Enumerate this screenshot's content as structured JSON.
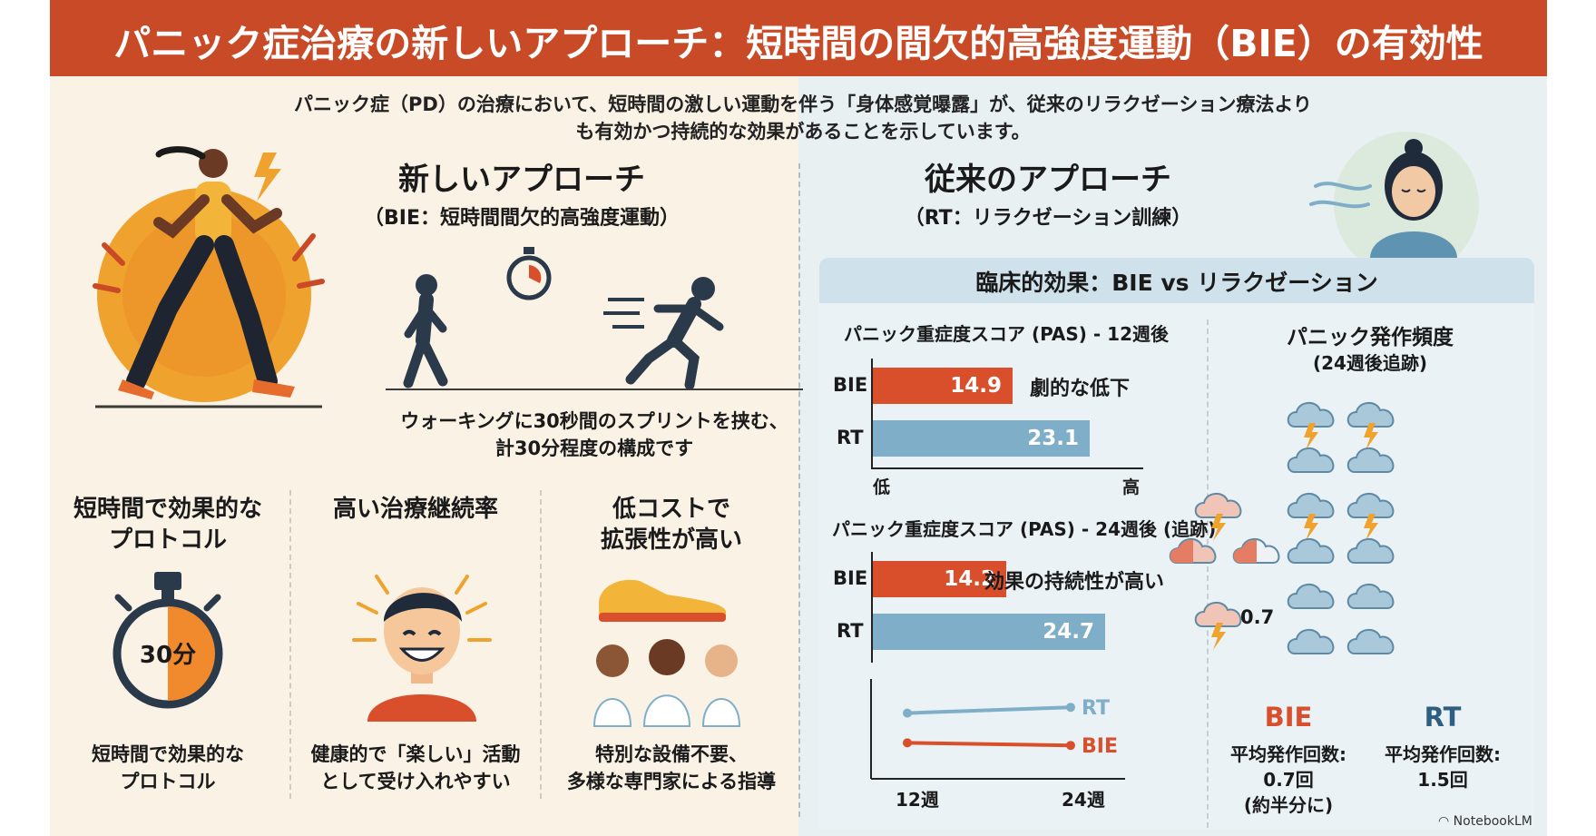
{
  "title": "パニック症治療の新しいアプローチ：短時間の間欠的高強度運動（BIE）の有効性",
  "intro": {
    "line1": "パニック症（PD）の治療において、短時間の激しい運動を伴う「身体感覚曝露」が、従来のリラクゼーション療法より",
    "line2": "も有効かつ持続的な効果があることを示しています。"
  },
  "new_approach": {
    "heading": "新しいアプローチ",
    "subheading": "（BIE：短時間間欠的高強度運動）",
    "description_line1": "ウォーキングに30秒間のスプリントを挟む、",
    "description_line2": "計30分程度の構成です"
  },
  "features": [
    {
      "title_line1": "短時間で効果的な",
      "title_line2": "プロトコル",
      "caption_line1": "短時間で効果的な",
      "caption_line2": "プロトコル",
      "icon_text": "30分"
    },
    {
      "title_line1": "高い治療継続率",
      "title_line2": "",
      "caption_line1": "健康的で「楽しい」活動",
      "caption_line2": "として受け入れやすい"
    },
    {
      "title_line1": "低コストで",
      "title_line2": "拡張性が高い",
      "caption_line1": "特別な設備不要、",
      "caption_line2": "多様な専門家による指導"
    }
  ],
  "traditional": {
    "heading": "従来のアプローチ",
    "subheading": "（RT：リラクゼーション訓練）"
  },
  "panel_title": "臨床的効果：BIE vs リラクゼーション",
  "chart_data": [
    {
      "type": "bar",
      "title": "パニック重症度スコア (PAS) - 12週後",
      "categories": [
        "BIE",
        "RT"
      ],
      "values": [
        14.9,
        23.1
      ],
      "annotation": "劇的な低下",
      "axis_low": "低",
      "axis_high": "高",
      "xlim": [
        0,
        28
      ]
    },
    {
      "type": "bar",
      "title": "パニック重症度スコア (PAS) - 24週後 (追跡)",
      "categories": [
        "BIE",
        "RT"
      ],
      "values": [
        14.2,
        24.7
      ],
      "annotation": "効果の持続性が高い",
      "xlim": [
        0,
        28
      ]
    },
    {
      "type": "line",
      "x": [
        "12週",
        "24週"
      ],
      "series": [
        {
          "name": "RT",
          "color": "#7fafc8",
          "values": [
            23.1,
            24.7
          ]
        },
        {
          "name": "BIE",
          "color": "#d94f2c",
          "values": [
            14.9,
            14.2
          ]
        }
      ]
    }
  ],
  "frequency": {
    "title_line1": "パニック発作頻度",
    "title_line2": "(24週後追跡)",
    "bie_value_label": "0.7",
    "bie_label": "BIE",
    "rt_label": "RT",
    "bie_caption_line1": "平均発作回数:",
    "bie_caption_line2": "0.7回",
    "bie_caption_line3": "(約半分に)",
    "rt_caption_line1": "平均発作回数:",
    "rt_caption_line2": "1.5回"
  },
  "footer": {
    "brand": "NotebookLM"
  },
  "colors": {
    "accent": "#c94a26",
    "bie": "#d94f2c",
    "rt": "#7fafc8",
    "navy": "#2b3a4a"
  }
}
